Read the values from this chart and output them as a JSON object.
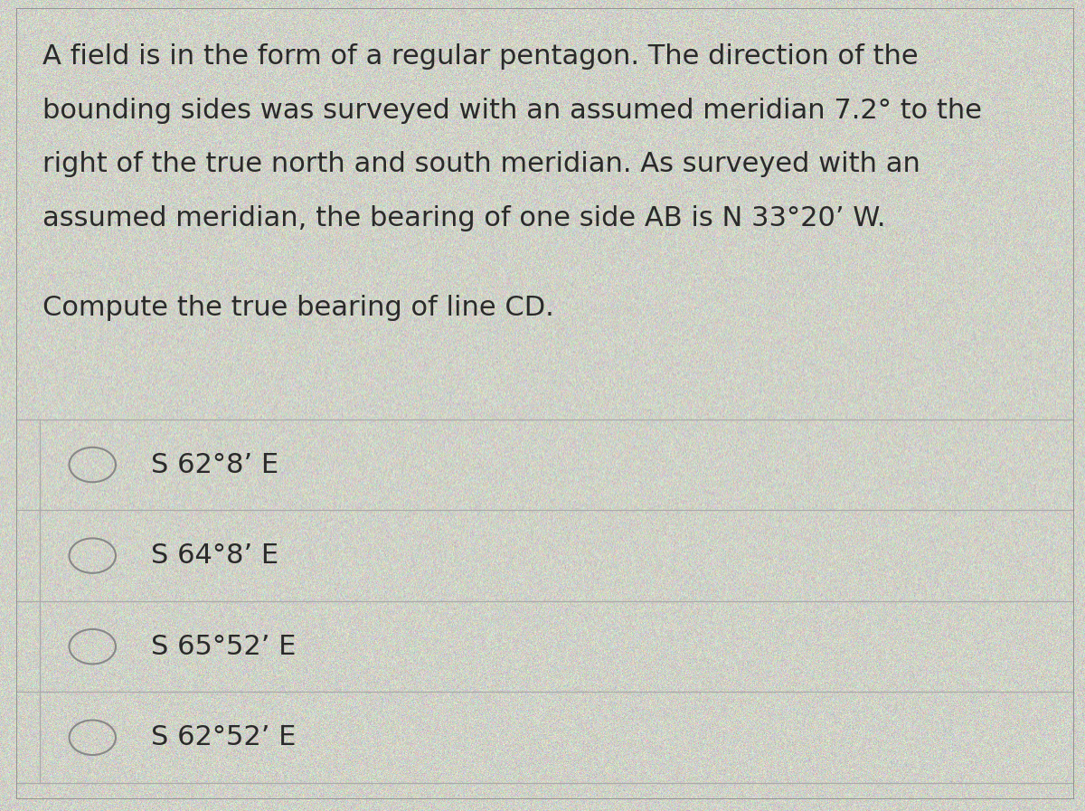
{
  "background_color": "#cdd4c5",
  "text_color": "#2a2a2a",
  "paragraph_lines": [
    "A field is in the form of a regular pentagon. The direction of the",
    "bounding sides was surveyed with an assumed meridian 7.2° to the",
    "right of the true north and south meridian. As surveyed with an",
    "assumed meridian, the bearing of one side AB is N 33°20’ W."
  ],
  "question": "Compute the true bearing of line CD.",
  "options": [
    "S 62°8’ E",
    "S 64°8’ E",
    "S 65°52’ E",
    "S 62°52’ E"
  ],
  "divider_color": "#aaaaaa",
  "circle_color": "#888888",
  "font_size_paragraph": 22,
  "font_size_question": 22,
  "font_size_options": 22,
  "outer_border_color": "#888888"
}
